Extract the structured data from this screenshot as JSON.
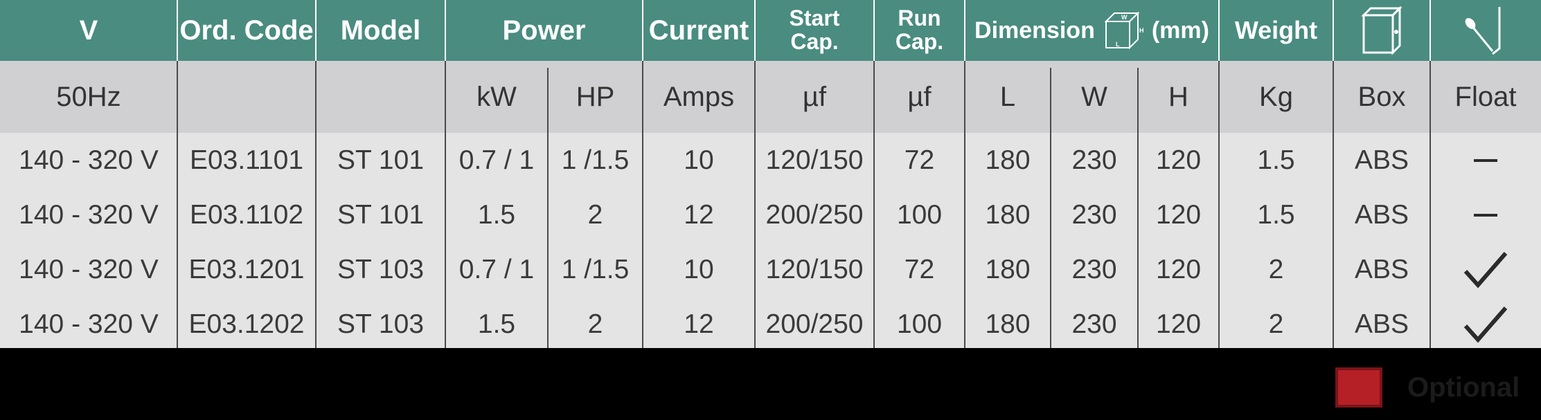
{
  "header": {
    "v": "V",
    "ord_code": "Ord. Code",
    "model": "Model",
    "power": "Power",
    "current": "Current",
    "start_cap_1": "Start",
    "start_cap_2": "Cap.",
    "run_cap_1": "Run",
    "run_cap_2": "Cap.",
    "dimension": "Dimension",
    "dimension_unit": "(mm)",
    "weight": "Weight",
    "box_icon": "box-icon",
    "float_icon": "float-switch-icon"
  },
  "subheader": {
    "freq": "50Hz",
    "kw": "kW",
    "hp": "HP",
    "amps": "Amps",
    "start_uf": "µf",
    "run_uf": "µf",
    "l": "L",
    "w": "W",
    "h": "H",
    "kg": "Kg",
    "box": "Box",
    "float": "Float"
  },
  "rows": [
    {
      "v": "140 - 320 V",
      "code": "E03.1101",
      "model": "ST 101",
      "kw": "0.7 / 1",
      "hp": "1 /1.5",
      "amps": "10",
      "start": "120/150",
      "run": "72",
      "l": "180",
      "w": "230",
      "h": "120",
      "kg": "1.5",
      "box": "ABS",
      "float": "dash"
    },
    {
      "v": "140 - 320 V",
      "code": "E03.1102",
      "model": "ST 101",
      "kw": "1.5",
      "hp": "2",
      "amps": "12",
      "start": "200/250",
      "run": "100",
      "l": "180",
      "w": "230",
      "h": "120",
      "kg": "1.5",
      "box": "ABS",
      "float": "dash"
    },
    {
      "v": "140 - 320 V",
      "code": "E03.1201",
      "model": "ST 103",
      "kw": "0.7 / 1",
      "hp": "1 /1.5",
      "amps": "10",
      "start": "120/150",
      "run": "72",
      "l": "180",
      "w": "230",
      "h": "120",
      "kg": "2",
      "box": "ABS",
      "float": "check"
    },
    {
      "v": "140 - 320 V",
      "code": "E03.1202",
      "model": "ST 103",
      "kw": "1.5",
      "hp": "2",
      "amps": "12",
      "start": "200/250",
      "run": "100",
      "l": "180",
      "w": "230",
      "h": "120",
      "kg": "2",
      "box": "ABS",
      "float": "check"
    }
  ],
  "legend": {
    "label": "Optional",
    "swatch_color": "#b52026"
  },
  "colors": {
    "header_bg": "#4a8c80",
    "subheader_bg": "#d0d0d2",
    "body_bg": "#e4e4e5",
    "footer_bg": "#000000"
  }
}
